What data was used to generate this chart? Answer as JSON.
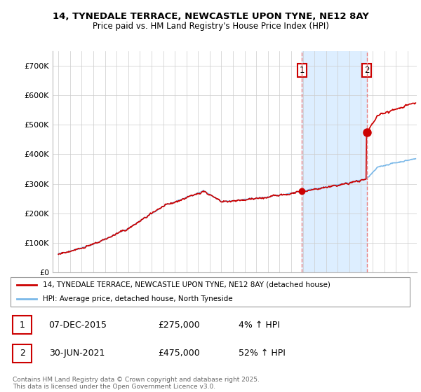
{
  "title_line1": "14, TYNEDALE TERRACE, NEWCASTLE UPON TYNE, NE12 8AY",
  "title_line2": "Price paid vs. HM Land Registry's House Price Index (HPI)",
  "background_color": "#ffffff",
  "plot_bg_color": "#ffffff",
  "grid_color": "#cccccc",
  "hpi_color": "#7ab8e8",
  "price_color": "#cc0000",
  "vline_color": "#e88080",
  "shade_color": "#ddeeff",
  "sale1_date_x": 2015.93,
  "sale1_price": 275000,
  "sale2_date_x": 2021.5,
  "sale2_price": 475000,
  "ylim_min": 0,
  "ylim_max": 750000,
  "xlim_min": 1994.5,
  "xlim_max": 2025.8,
  "yticks": [
    0,
    100000,
    200000,
    300000,
    400000,
    500000,
    600000,
    700000
  ],
  "ytick_labels": [
    "£0",
    "£100K",
    "£200K",
    "£300K",
    "£400K",
    "£500K",
    "£600K",
    "£700K"
  ],
  "xticks": [
    1995,
    1996,
    1997,
    1998,
    1999,
    2000,
    2001,
    2002,
    2003,
    2004,
    2005,
    2006,
    2007,
    2008,
    2009,
    2010,
    2011,
    2012,
    2013,
    2014,
    2015,
    2016,
    2017,
    2018,
    2019,
    2020,
    2021,
    2022,
    2023,
    2024,
    2025
  ],
  "legend_label1": "14, TYNEDALE TERRACE, NEWCASTLE UPON TYNE, NE12 8AY (detached house)",
  "legend_label2": "HPI: Average price, detached house, North Tyneside",
  "table_row1": [
    "1",
    "07-DEC-2015",
    "£275,000",
    "4% ↑ HPI"
  ],
  "table_row2": [
    "2",
    "30-JUN-2021",
    "£475,000",
    "52% ↑ HPI"
  ],
  "footnote": "Contains HM Land Registry data © Crown copyright and database right 2025.\nThis data is licensed under the Open Government Licence v3.0."
}
